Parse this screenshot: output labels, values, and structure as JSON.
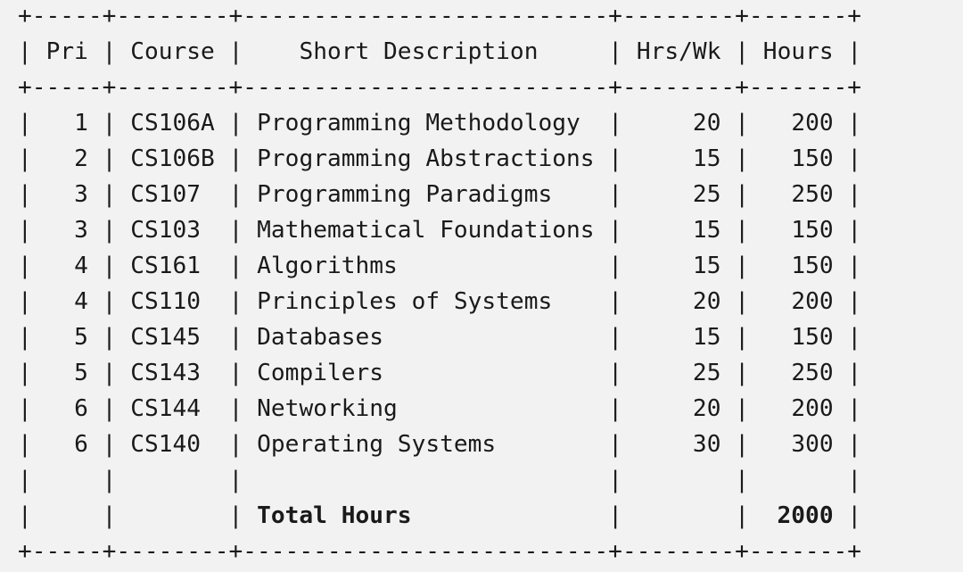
{
  "headers": {
    "pri": "Pri",
    "course": "Course",
    "description": "Short Description",
    "hrs_wk": "Hrs/Wk",
    "hours": "Hours"
  },
  "rows": [
    {
      "pri": "1",
      "course": "CS106A",
      "description": "Programming Methodology",
      "hrs_wk": "20",
      "hours": "200"
    },
    {
      "pri": "2",
      "course": "CS106B",
      "description": "Programming Abstractions",
      "hrs_wk": "15",
      "hours": "150"
    },
    {
      "pri": "3",
      "course": "CS107",
      "description": "Programming Paradigms",
      "hrs_wk": "25",
      "hours": "250"
    },
    {
      "pri": "3",
      "course": "CS103",
      "description": "Mathematical Foundations",
      "hrs_wk": "15",
      "hours": "150"
    },
    {
      "pri": "4",
      "course": "CS161",
      "description": "Algorithms",
      "hrs_wk": "15",
      "hours": "150"
    },
    {
      "pri": "4",
      "course": "CS110",
      "description": "Principles of Systems",
      "hrs_wk": "20",
      "hours": "200"
    },
    {
      "pri": "5",
      "course": "CS145",
      "description": "Databases",
      "hrs_wk": "15",
      "hours": "150"
    },
    {
      "pri": "5",
      "course": "CS143",
      "description": "Compilers",
      "hrs_wk": "25",
      "hours": "250"
    },
    {
      "pri": "6",
      "course": "CS144",
      "description": "Networking",
      "hrs_wk": "20",
      "hours": "200"
    },
    {
      "pri": "6",
      "course": "CS140",
      "description": "Operating Systems",
      "hrs_wk": "30",
      "hours": "300"
    }
  ],
  "total": {
    "label": "Total Hours",
    "hours": "2000"
  }
}
